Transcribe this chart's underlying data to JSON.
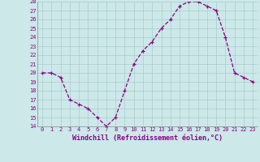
{
  "x": [
    0,
    1,
    2,
    3,
    4,
    5,
    6,
    7,
    8,
    9,
    10,
    11,
    12,
    13,
    14,
    15,
    16,
    17,
    18,
    19,
    20,
    21,
    22,
    23
  ],
  "y": [
    20.0,
    20.0,
    19.5,
    17.0,
    16.5,
    16.0,
    15.0,
    14.0,
    15.0,
    18.0,
    21.0,
    22.5,
    23.5,
    25.0,
    26.0,
    27.5,
    28.0,
    28.0,
    27.5,
    27.0,
    24.0,
    20.0,
    19.5,
    19.0
  ],
  "ylim": [
    14,
    28
  ],
  "yticks": [
    14,
    15,
    16,
    17,
    18,
    19,
    20,
    21,
    22,
    23,
    24,
    25,
    26,
    27,
    28
  ],
  "xticks": [
    0,
    1,
    2,
    3,
    4,
    5,
    6,
    7,
    8,
    9,
    10,
    11,
    12,
    13,
    14,
    15,
    16,
    17,
    18,
    19,
    20,
    21,
    22,
    23
  ],
  "xlabel": "Windchill (Refroidissement éolien,°C)",
  "line_color": "#880088",
  "marker": "+",
  "bg_color": "#cce8e8",
  "grid_color": "#aacccc",
  "xlabel_color": "#880088",
  "tick_color": "#880088",
  "tick_fontsize": 5.0,
  "xlabel_fontsize": 6.0,
  "marker_size": 3.5,
  "linewidth": 0.9
}
